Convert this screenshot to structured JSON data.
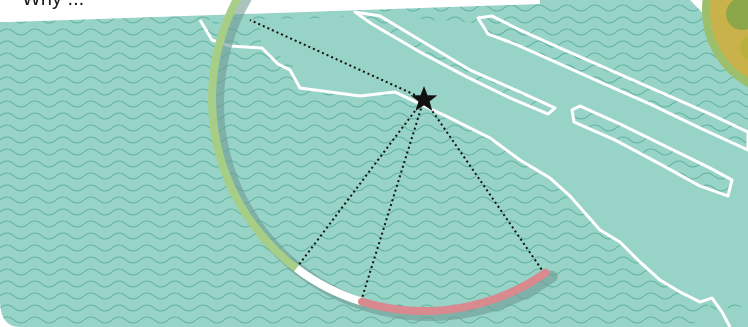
{
  "caption": {
    "text": "Why ..."
  },
  "colors": {
    "water": "#97d3c6",
    "wave_lines": "#5fb3a2",
    "coastline": "#ffffff",
    "arc_green": "#a6ce86",
    "arc_white": "#ffffff",
    "arc_pink": "#d88a8e",
    "arc_shadow": "#6f9b95",
    "sightline": "#111111",
    "star": "#111111",
    "photo_ring": "#9bbf6a",
    "photo_fill": "#c9b24a"
  },
  "map": {
    "viewpoint_marker": "star-icon",
    "sightline_count": 4,
    "arc_segments": [
      "green",
      "white",
      "pink"
    ]
  }
}
